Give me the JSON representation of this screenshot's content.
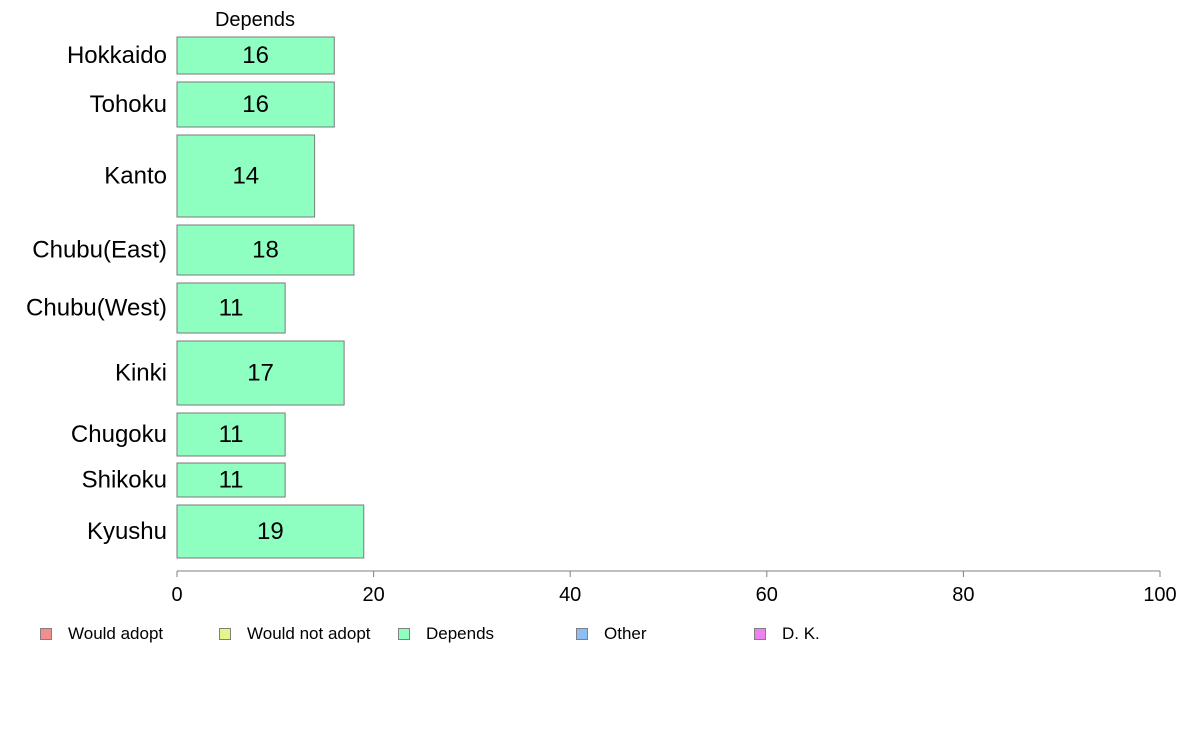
{
  "chart_data": {
    "type": "bar",
    "orientation": "horizontal",
    "title": "Depends",
    "categories": [
      "Hokkaido",
      "Tohoku",
      "Kanto",
      "Chubu(East)",
      "Chubu(West)",
      "Kinki",
      "Chugoku",
      "Shikoku",
      "Kyushu"
    ],
    "values": [
      16,
      16,
      14,
      18,
      11,
      17,
      11,
      11,
      19
    ],
    "value_labels": [
      "16",
      "16",
      "14",
      "18",
      "11",
      "17",
      "11",
      "11",
      "19"
    ],
    "bar_color": "#8effc1",
    "xlim": [
      0,
      100
    ],
    "xticks": [
      0,
      20,
      40,
      60,
      80,
      100
    ],
    "xlabel": "",
    "ylabel": "",
    "grid": false,
    "legend_position": "bottom-left",
    "legend": [
      {
        "label": "Would adopt",
        "color": "#f28e8e"
      },
      {
        "label": "Would not adopt",
        "color": "#e6f58a"
      },
      {
        "label": "Depends",
        "color": "#8effc1"
      },
      {
        "label": "Other",
        "color": "#8ebcf5"
      },
      {
        "label": "D. K.",
        "color": "#ee82f0"
      }
    ]
  }
}
